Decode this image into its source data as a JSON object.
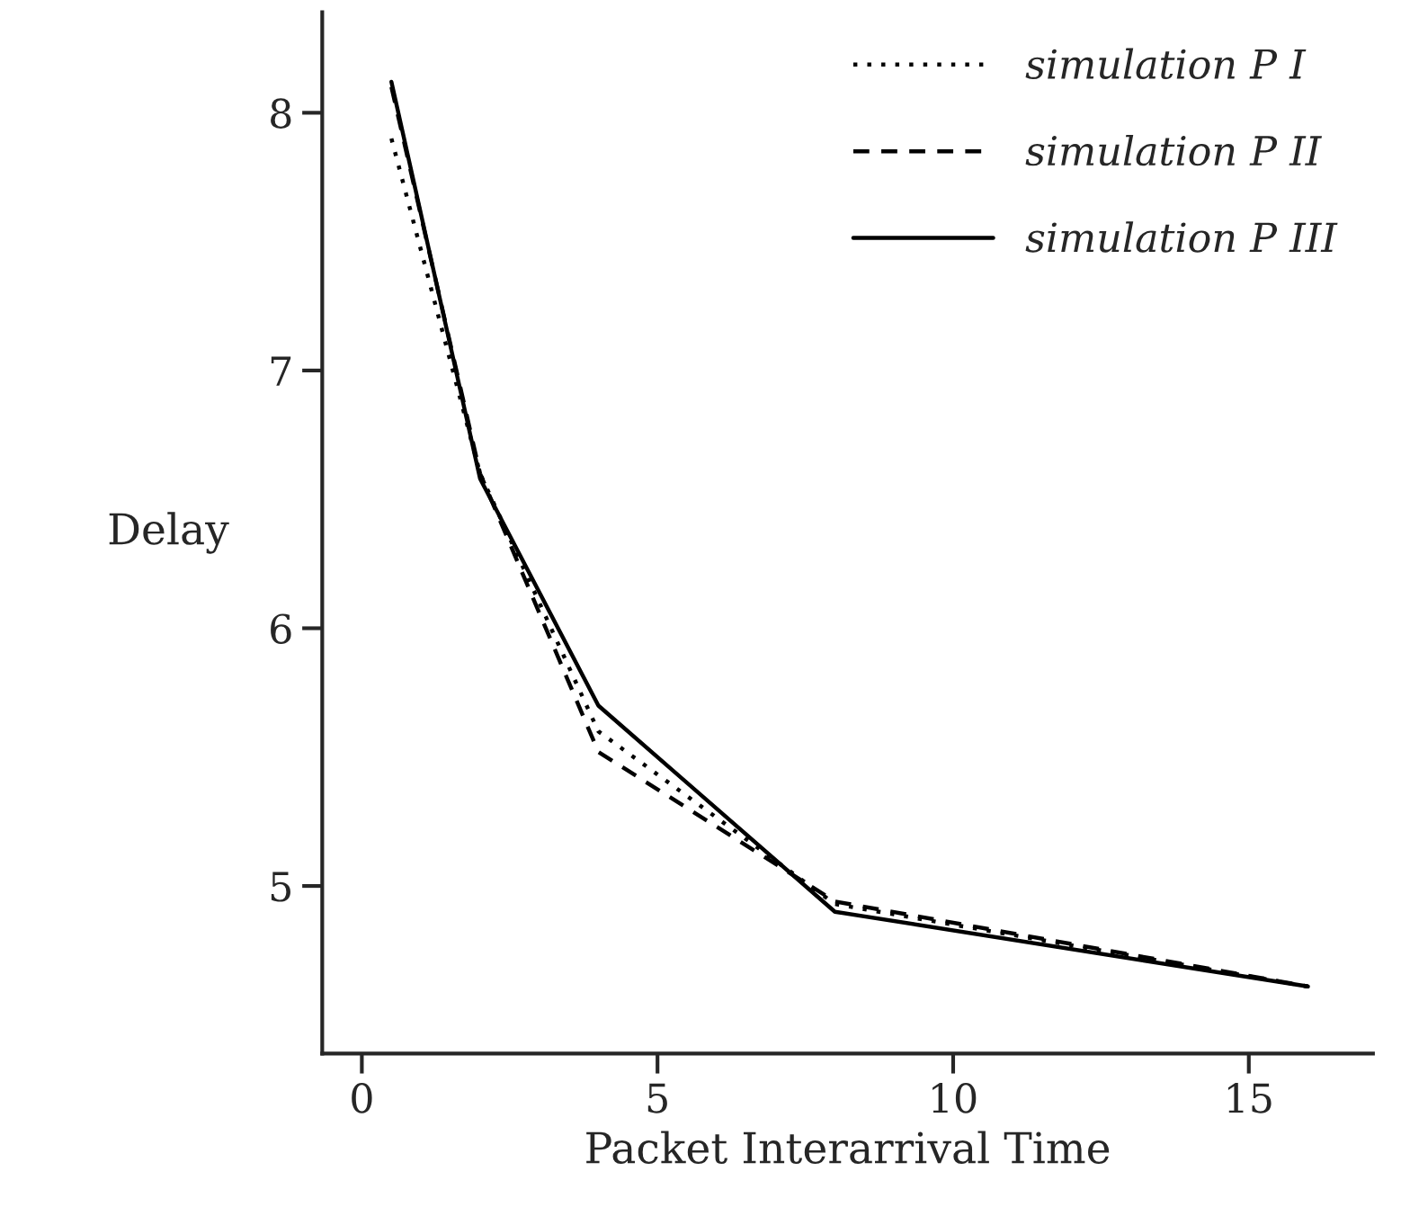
{
  "chart_data": {
    "type": "line",
    "xlabel": "Packet Interarrival Time",
    "ylabel": "Delay",
    "xlim": [
      -0.67,
      17.1
    ],
    "ylim": [
      4.35,
      8.39
    ],
    "xticks": [
      0,
      5,
      10,
      15
    ],
    "yticks": [
      5,
      6,
      7,
      8
    ],
    "grid": false,
    "legend": "top right",
    "marker": "none",
    "series": [
      {
        "name": "simulation P I",
        "color": "#000000",
        "line_style": "dotted",
        "x": [
          0.5,
          2,
          4,
          8,
          16
        ],
        "values": [
          7.9,
          6.6,
          5.6,
          4.93,
          4.61
        ]
      },
      {
        "name": "simulation P II",
        "color": "#000000",
        "line_style": "dashed",
        "x": [
          0.5,
          2,
          4,
          8,
          16
        ],
        "values": [
          8.1,
          6.6,
          5.52,
          4.94,
          4.61
        ]
      },
      {
        "name": "simulation P III",
        "color": "#000000",
        "line_style": "solid",
        "x": [
          0.5,
          2,
          4,
          8,
          16
        ],
        "values": [
          8.12,
          6.58,
          5.7,
          4.9,
          4.61
        ]
      }
    ]
  }
}
